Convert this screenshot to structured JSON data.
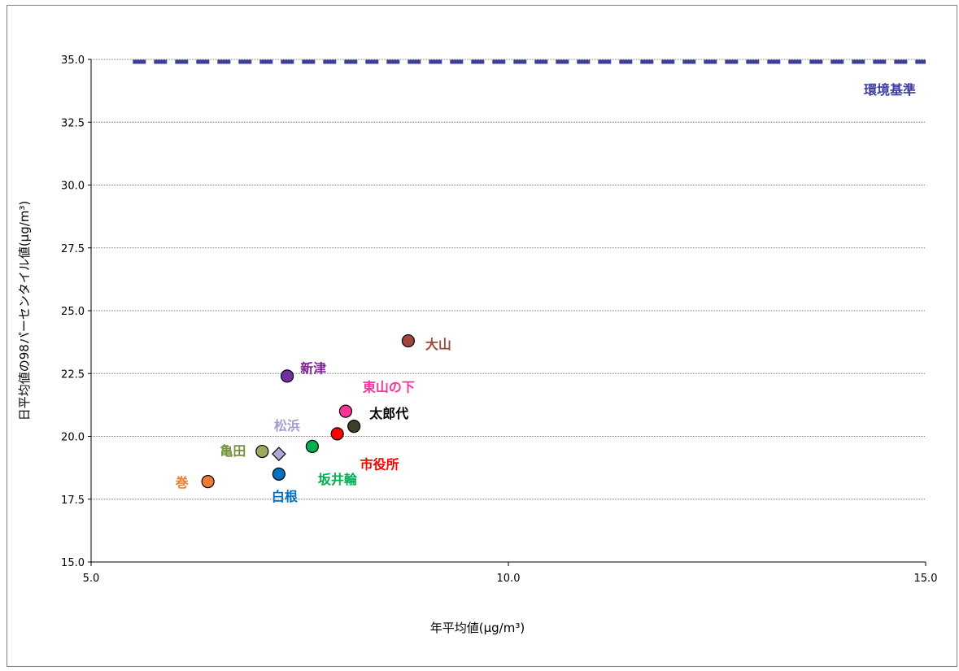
{
  "chart_data": {
    "type": "scatter",
    "title": "",
    "xlabel": "年平均値(μg/m³)",
    "ylabel": "日平均値の98パーセンタイル値(μg/m³)",
    "xlim": [
      5.0,
      15.0
    ],
    "ylim": [
      15.0,
      35.0
    ],
    "x_ticks": [
      "5.0",
      "10.0",
      "15.0"
    ],
    "y_ticks": [
      "15.0",
      "17.5",
      "20.0",
      "22.5",
      "25.0",
      "27.5",
      "30.0",
      "32.5",
      "35.0"
    ],
    "grid": true,
    "reference_line": {
      "label": "環境基準",
      "y": 35.0,
      "x_from": 5.5,
      "x_to": 15.0,
      "color": "#3d3d9e",
      "style": "dashed"
    },
    "points": [
      {
        "name": "大山",
        "x": 8.8,
        "y": 23.8,
        "color": "#a0463c",
        "label_color": "#a0463c",
        "marker": "circle"
      },
      {
        "name": "新津",
        "x": 7.35,
        "y": 22.4,
        "color": "#7030a0",
        "label_color": "#7b2193",
        "marker": "circle"
      },
      {
        "name": "東山の下",
        "x": 8.05,
        "y": 21.0,
        "color": "#ff3399",
        "label_color": "#ff3399",
        "marker": "circle"
      },
      {
        "name": "太郎代",
        "x": 8.15,
        "y": 20.4,
        "color": "#3e3e2a",
        "label_color": "#000000",
        "marker": "circle"
      },
      {
        "name": "市役所",
        "x": 7.95,
        "y": 20.1,
        "color": "#ff0000",
        "label_color": "#ff0000",
        "marker": "circle"
      },
      {
        "name": "坂井輪",
        "x": 7.65,
        "y": 19.6,
        "color": "#00b050",
        "label_color": "#00b050",
        "marker": "circle"
      },
      {
        "name": "松浜",
        "x": 7.25,
        "y": 19.3,
        "color": "#b4a7d6",
        "label_color": "#a99bcc",
        "marker": "diamond"
      },
      {
        "name": "亀田",
        "x": 7.05,
        "y": 19.4,
        "color": "#9bab5e",
        "label_color": "#76923c",
        "marker": "circle"
      },
      {
        "name": "白根",
        "x": 7.25,
        "y": 18.5,
        "color": "#0070c0",
        "label_color": "#0070c0",
        "marker": "circle"
      },
      {
        "name": "巻",
        "x": 6.4,
        "y": 18.2,
        "color": "#ed7d31",
        "label_color": "#ed7d31",
        "marker": "circle"
      }
    ]
  }
}
